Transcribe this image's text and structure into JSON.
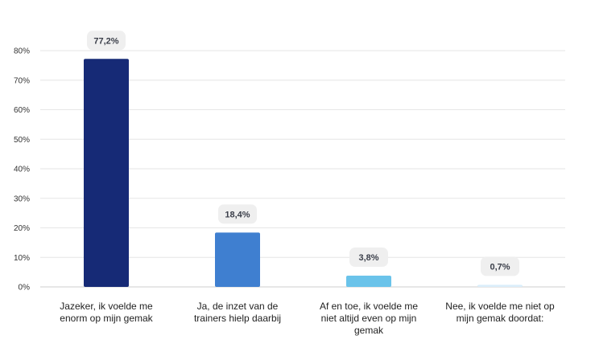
{
  "chart_data": {
    "type": "bar",
    "categories": [
      [
        "Jazeker, ik voelde me",
        "enorm op mijn gemak"
      ],
      [
        "Ja, de inzet van de",
        "trainers hielp daarbij"
      ],
      [
        "Af en toe, ik voelde me",
        "niet altijd even op mijn",
        "gemak"
      ],
      [
        "Nee, ik voelde me niet op",
        "mijn gemak doordat:"
      ]
    ],
    "values": [
      77.2,
      18.4,
      3.8,
      0.7
    ],
    "data_labels": [
      "77,2%",
      "18,4%",
      "3,8%",
      "0,7%"
    ],
    "bar_colors": [
      "#162a76",
      "#3f7fd0",
      "#6ac3ea",
      "#dbeefa"
    ],
    "ylim": [
      0,
      80
    ],
    "yticks": [
      0,
      10,
      20,
      30,
      40,
      50,
      60,
      70,
      80
    ],
    "ytick_labels": [
      "0%",
      "10%",
      "20%",
      "30%",
      "40%",
      "50%",
      "60%",
      "70%",
      "80%"
    ],
    "grid": true,
    "title": "",
    "xlabel": "",
    "ylabel": ""
  }
}
